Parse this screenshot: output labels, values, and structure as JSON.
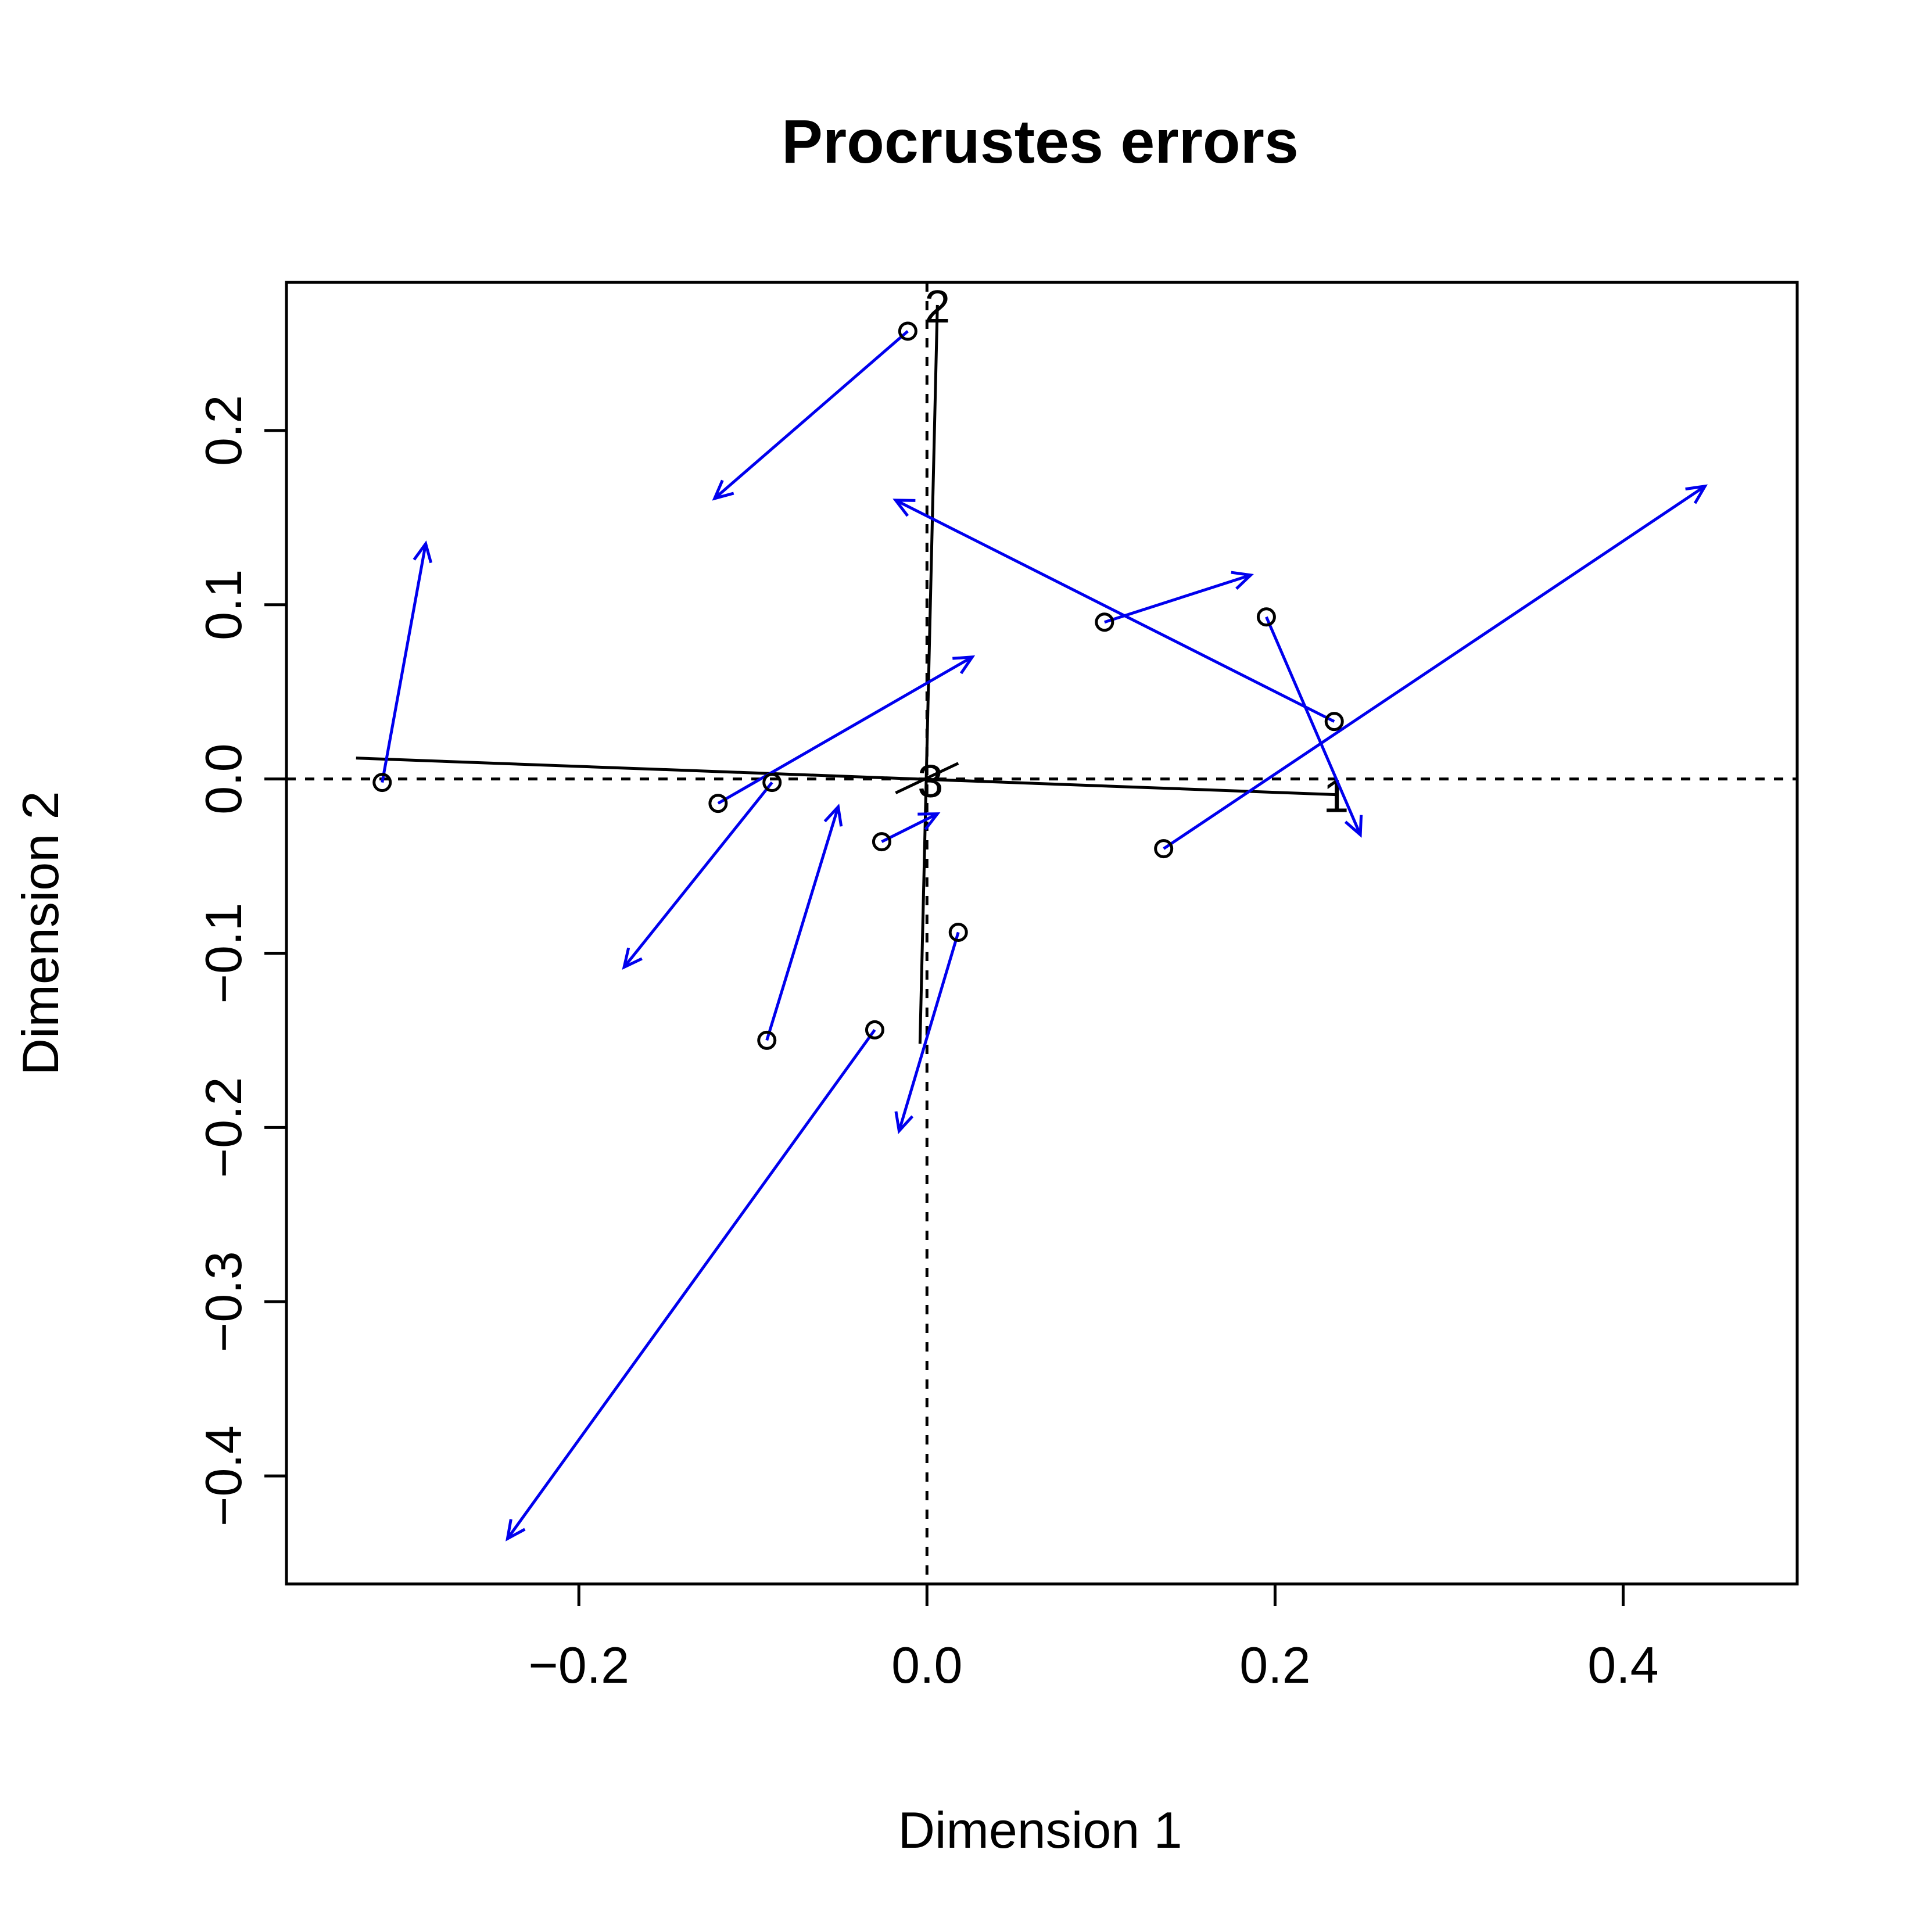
{
  "chart_data": {
    "type": "scatter",
    "title": "Procrustes errors",
    "xlabel": "Dimension 1",
    "ylabel": "Dimension 2",
    "xlim": [
      -0.368,
      0.5
    ],
    "ylim": [
      -0.462,
      0.285
    ],
    "x_ticks": [
      -0.2,
      0.0,
      0.2,
      0.4
    ],
    "x_tick_labels": [
      "−0.2",
      "0.0",
      "0.2",
      "0.4"
    ],
    "y_ticks": [
      -0.4,
      -0.3,
      -0.2,
      -0.1,
      0.0,
      0.1,
      0.2
    ],
    "y_tick_labels": [
      "−0.4",
      "−0.3",
      "−0.2",
      "−0.1",
      "0.0",
      "0.1",
      "0.2"
    ],
    "grid": false,
    "legend": "none",
    "reference_lines": {
      "x": 0.0,
      "y": 0.0,
      "style": "dashed"
    },
    "rotation_axes": [
      {
        "label": "1",
        "from": [
          -0.328,
          0.012
        ],
        "to": [
          0.235,
          -0.009
        ]
      },
      {
        "label": "2",
        "from": [
          -0.004,
          -0.152
        ],
        "to": [
          0.006,
          0.272
        ]
      },
      {
        "label": "3",
        "from": [
          -0.018,
          -0.008
        ],
        "to": [
          0.018,
          0.009
        ]
      }
    ],
    "arrow_color": "#0000ee",
    "point_color": "#000000",
    "points": [
      {
        "x": -0.313,
        "y": -0.002,
        "tx": -0.288,
        "ty": 0.135
      },
      {
        "x": -0.011,
        "y": 0.257,
        "tx": -0.122,
        "ty": 0.161
      },
      {
        "x": 0.102,
        "y": 0.09,
        "tx": 0.186,
        "ty": 0.117
      },
      {
        "x": 0.195,
        "y": 0.093,
        "tx": 0.249,
        "ty": -0.032
      },
      {
        "x": 0.234,
        "y": 0.033,
        "tx": -0.018,
        "ty": 0.16
      },
      {
        "x": -0.089,
        "y": -0.002,
        "tx": -0.174,
        "ty": -0.108
      },
      {
        "x": -0.12,
        "y": -0.014,
        "tx": 0.026,
        "ty": 0.07
      },
      {
        "x": 0.136,
        "y": -0.04,
        "tx": 0.447,
        "ty": 0.168
      },
      {
        "x": -0.026,
        "y": -0.036,
        "tx": 0.006,
        "ty": -0.02
      },
      {
        "x": 0.018,
        "y": -0.088,
        "tx": -0.016,
        "ty": -0.202
      },
      {
        "x": -0.092,
        "y": -0.15,
        "tx": -0.051,
        "ty": -0.016
      },
      {
        "x": -0.03,
        "y": -0.144,
        "tx": -0.241,
        "ty": -0.436
      }
    ]
  }
}
